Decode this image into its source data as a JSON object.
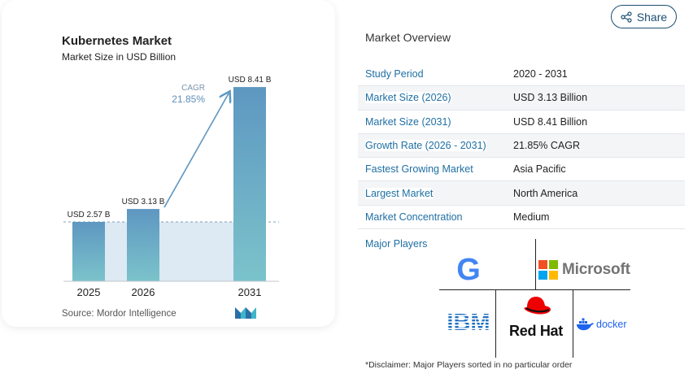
{
  "chart_data": {
    "type": "bar",
    "title": "Kubernetes Market",
    "subtitle": "Market Size in USD Billion",
    "categories": [
      "2025",
      "2026",
      "2031"
    ],
    "values": [
      2.57,
      3.13,
      8.41
    ],
    "data_labels": [
      "USD 2.57 B",
      "USD 3.13 B",
      "USD 8.41 B"
    ],
    "annotation": {
      "label": "CAGR",
      "value": "21.85%"
    },
    "ylim": [
      0,
      8.8
    ],
    "xlabel": "",
    "ylabel": "",
    "bar_color_light": "#5e9bc4",
    "bar_color_dark": "#7cc3cb",
    "source": "Source: Mordor Intelligence"
  },
  "share": {
    "label": "Share",
    "icon": "share-icon"
  },
  "overview": {
    "title": "Market Overview",
    "rows": [
      {
        "key": "Study Period",
        "value": "2020 - 2031"
      },
      {
        "key": "Market Size (2026)",
        "value": "USD 3.13 Billion"
      },
      {
        "key": "Market Size (2031)",
        "value": "USD 8.41 Billion"
      },
      {
        "key": "Growth Rate (2026 - 2031)",
        "value": "21.85% CAGR"
      },
      {
        "key": "Fastest Growing Market",
        "value": "Asia Pacific"
      },
      {
        "key": "Largest Market",
        "value": "North America"
      },
      {
        "key": "Market Concentration",
        "value": "Medium"
      }
    ]
  },
  "players": {
    "label": "Major Players",
    "microsoft": "Microsoft",
    "redhat": "Red Hat",
    "docker": "docker",
    "ibm": "IBM",
    "google": "G"
  },
  "disclaimer": "*Disclaimer: Major Players sorted in no particular order",
  "colors": {
    "accent": "#1f6fa3",
    "brand_dark": "#1c4f72"
  }
}
